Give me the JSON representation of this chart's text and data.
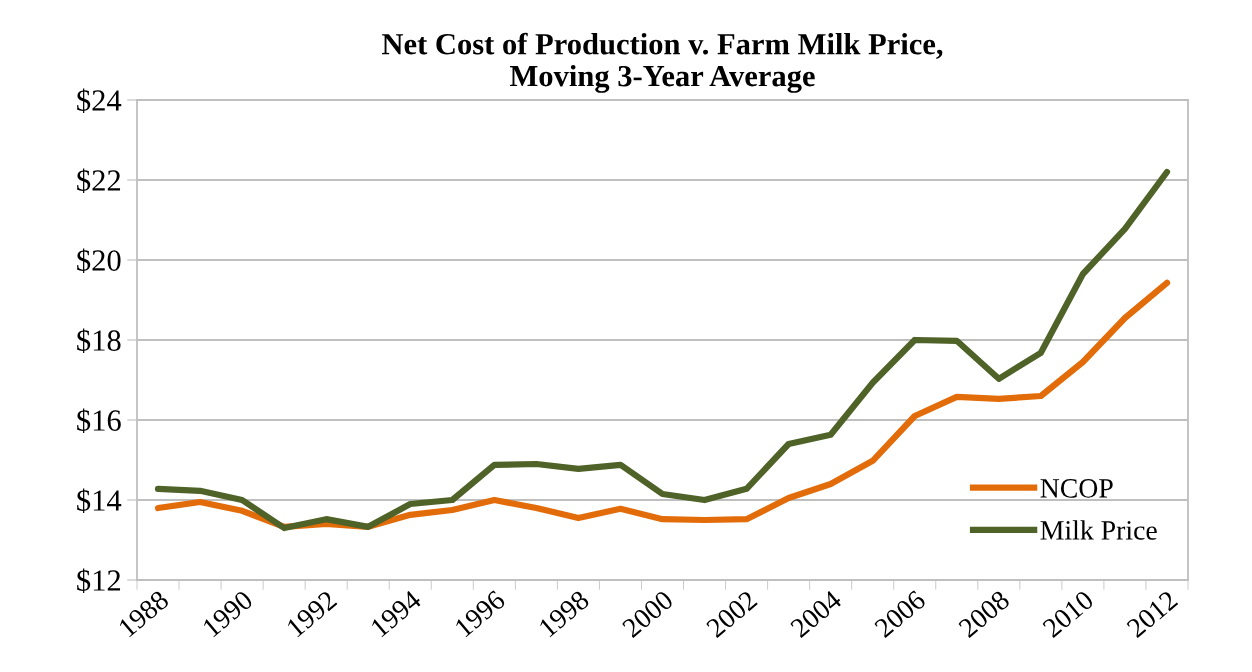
{
  "chart_data": {
    "type": "line",
    "title": "Net Cost of Production v. Farm Milk Price,\nMoving 3-Year Average",
    "categories": [
      "1988",
      null,
      "1990",
      null,
      "1992",
      null,
      "1994",
      null,
      "1996",
      null,
      "1998",
      null,
      "2000",
      null,
      "2002",
      null,
      "2004",
      null,
      "2006",
      null,
      "2008",
      null,
      "2010",
      null,
      "2012"
    ],
    "series": [
      {
        "name": "NCOP",
        "color": "#e36c0a",
        "values": [
          13.8,
          13.95,
          13.73,
          13.33,
          13.4,
          13.33,
          13.63,
          13.75,
          14.0,
          13.8,
          13.55,
          13.78,
          13.52,
          13.5,
          13.52,
          14.05,
          14.4,
          14.98,
          16.1,
          16.58,
          16.53,
          16.6,
          17.45,
          18.55,
          19.43
        ]
      },
      {
        "name": "Milk Price",
        "color": "#4f6228",
        "values": [
          14.28,
          14.23,
          14.0,
          13.3,
          13.52,
          13.33,
          13.9,
          14.0,
          14.88,
          14.9,
          14.78,
          14.88,
          14.15,
          14.0,
          14.28,
          15.4,
          15.63,
          16.93,
          18.0,
          17.98,
          17.03,
          17.68,
          19.65,
          20.78,
          22.2
        ]
      }
    ],
    "ylim": [
      12,
      24
    ],
    "yticks": [
      {
        "value": 12,
        "label": "$12"
      },
      {
        "value": 14,
        "label": "$14"
      },
      {
        "value": 16,
        "label": "$16"
      },
      {
        "value": 18,
        "label": "$18"
      },
      {
        "value": 20,
        "label": "$20"
      },
      {
        "value": 22,
        "label": "$22"
      },
      {
        "value": 24,
        "label": "$24"
      }
    ],
    "grid": "y",
    "legend": "bottom right",
    "marker": "none",
    "line_style": "solid"
  }
}
